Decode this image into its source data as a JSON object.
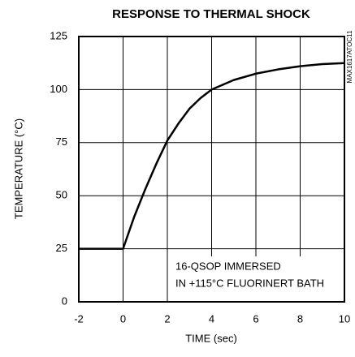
{
  "chart_data": {
    "type": "line",
    "title": "RESPONSE TO THERMAL SHOCK",
    "x_label": "TIME (sec)",
    "y_label": "TEMPERATURE (°C)",
    "annotations": [
      "16-QSOP IMMERSED",
      "IN +115°C FLUORINERT BATH"
    ],
    "side_label": "MAX1617ATOC11",
    "x": [
      -2,
      0,
      0.5,
      1,
      1.5,
      2,
      2.5,
      3,
      3.5,
      4,
      5,
      6,
      7,
      8,
      9,
      10
    ],
    "series": [
      {
        "color": "#000000",
        "values": [
          25,
          25,
          40,
          53,
          65,
          76,
          84,
          91,
          96,
          100,
          104.5,
          107.5,
          109.5,
          111,
          112,
          112.5
        ]
      }
    ],
    "xlim": [
      -2,
      10
    ],
    "xticks": [
      -2,
      0,
      2,
      4,
      6,
      8,
      10
    ],
    "ylim": [
      0,
      125
    ],
    "yticks": [
      0,
      25,
      50,
      75,
      100,
      125
    ],
    "grid": true
  }
}
